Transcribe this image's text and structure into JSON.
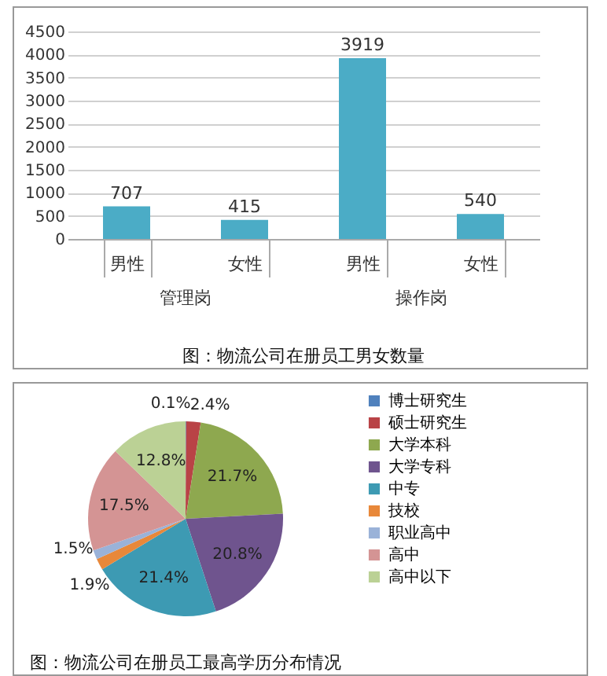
{
  "chart_data": [
    {
      "type": "bar",
      "title": "图：物流公司在册员工男女数量",
      "categories": [
        "男性",
        "女性",
        "男性",
        "女性"
      ],
      "values": [
        707,
        415,
        3919,
        540
      ],
      "color": "#4bacc6",
      "ylim": [
        0,
        4500
      ],
      "yticks": [
        0,
        500,
        1000,
        1500,
        2000,
        2500,
        3000,
        3500,
        4000,
        4500
      ],
      "grid": "y",
      "data_labels": true,
      "annotations": [
        "管理岗",
        "操作岗"
      ]
    },
    {
      "type": "pie",
      "title": "图：物流公司在册员工最高学历分布情况",
      "categories": [
        "博士研究生",
        "硕士研究生",
        "大学本科",
        "大学专科",
        "中专",
        "技校",
        "职业高中",
        "高中",
        "高中以下"
      ],
      "values": [
        0.1,
        2.4,
        21.7,
        20.8,
        21.4,
        1.9,
        1.5,
        17.5,
        12.8
      ],
      "colors": [
        "#4f81bd",
        "#b94346",
        "#8ea84f",
        "#6f548e",
        "#3d9ab3",
        "#e8883a",
        "#9ab2d8",
        "#d49494",
        "#bbd195"
      ],
      "value_labels": [
        "0.1%",
        "2.4%",
        "21.7%",
        "20.8%",
        "21.4%",
        "1.9%",
        "1.5%",
        "17.5%",
        "12.8%"
      ],
      "legend": "right"
    }
  ]
}
